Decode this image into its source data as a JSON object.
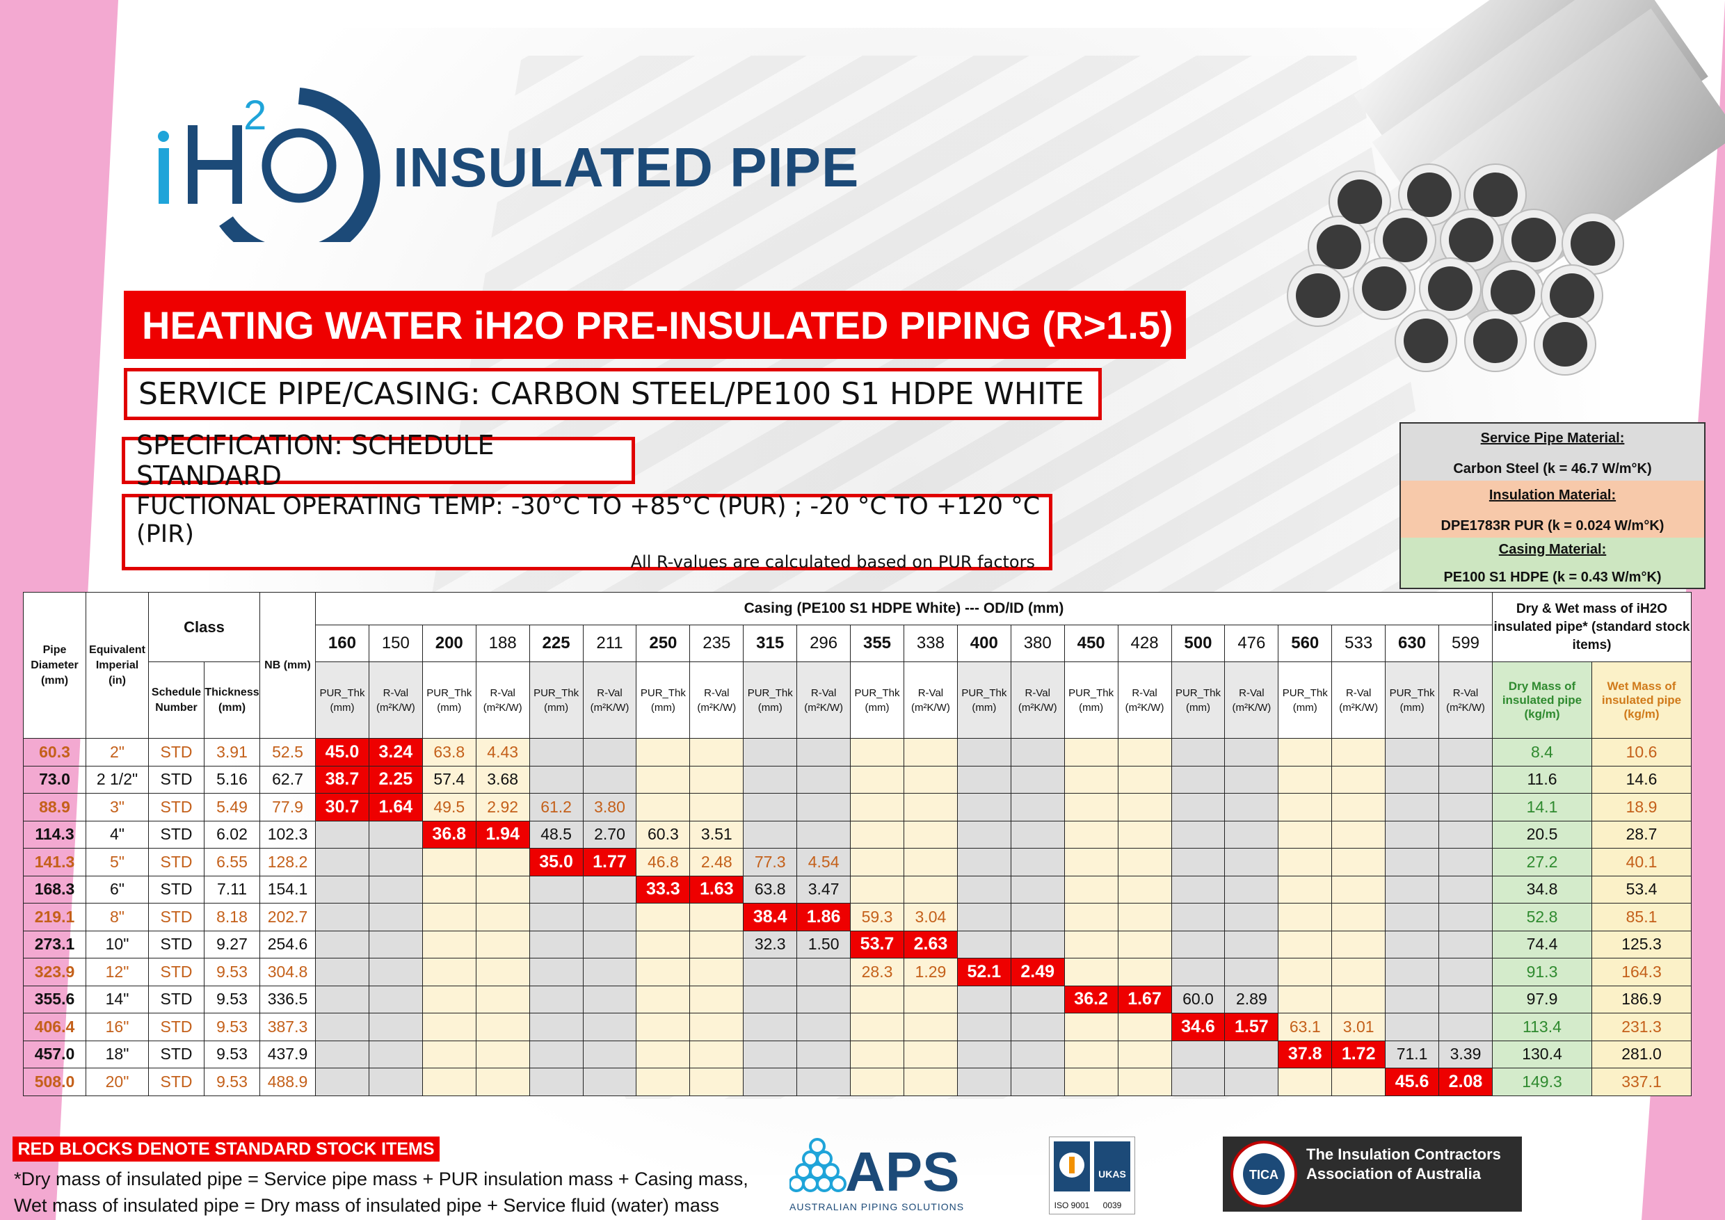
{
  "brand": {
    "logo_text": "iH2O",
    "title": "INSULATED PIPE"
  },
  "headline": "HEATING WATER iH2O PRE-INSULATED PIPING (R>1.5)",
  "service_pipe": "SERVICE PIPE/CASING: CARBON STEEL/PE100 S1 HDPE WHITE",
  "specification": "SPECIFICATION: SCHEDULE STANDARD",
  "temperature": "FUCTIONAL OPERATING TEMP: -30°C TO +85°C (PUR) ; -20 °C TO +120 °C (PIR)",
  "r_value_note": "All R-values are calculated based on PUR factors",
  "materials": {
    "service_heading": "Service Pipe Material:",
    "service_value": "Carbon Steel    (k = 46.7 W/m°K)",
    "insulation_heading": "Insulation Material:",
    "insulation_value": "DPE1783R PUR    (k = 0.024 W/m°K)",
    "casing_heading": "Casing Material:",
    "casing_value": "PE100 S1 HDPE    (k = 0.43 W/m°K)"
  },
  "table": {
    "headers": {
      "pipe_diameter": "Pipe Diameter (mm)",
      "equivalent_imperial": "Equivalent Imperial (in)",
      "class": "Class",
      "schedule_number": "Schedule Number",
      "thickness": "Thickness (mm)",
      "nb": "NB (mm)",
      "casing": "Casing (PE100 S1 HDPE White) --- OD/ID (mm)",
      "mass": "Dry & Wet mass of iH2O insulated pipe* (standard stock items)",
      "dry_mass": "Dry Mass of insulated pipe (kg/m)",
      "wet_mass": "Wet Mass of insulated pipe (kg/m)",
      "pur_thk": "PUR_Thk (mm)",
      "r_val": "R-Val (m²K/W)"
    },
    "casing_sizes": [
      {
        "od": "160",
        "id": "150"
      },
      {
        "od": "200",
        "id": "188"
      },
      {
        "od": "225",
        "id": "211"
      },
      {
        "od": "250",
        "id": "235"
      },
      {
        "od": "315",
        "id": "296"
      },
      {
        "od": "355",
        "id": "338"
      },
      {
        "od": "400",
        "id": "380"
      },
      {
        "od": "450",
        "id": "428"
      },
      {
        "od": "500",
        "id": "476"
      },
      {
        "od": "560",
        "id": "533"
      },
      {
        "od": "630",
        "id": "599"
      }
    ],
    "rows": [
      {
        "dia": "60.3",
        "imp": "2\"",
        "sch": "STD",
        "thk": "3.91",
        "nb": "52.5",
        "start": 0,
        "cells": [
          "45.0",
          "3.24",
          "63.8",
          "4.43"
        ],
        "dry": "8.4",
        "wet": "10.6"
      },
      {
        "dia": "73.0",
        "imp": "2 1/2\"",
        "sch": "STD",
        "thk": "5.16",
        "nb": "62.7",
        "start": 0,
        "cells": [
          "38.7",
          "2.25",
          "57.4",
          "3.68"
        ],
        "dry": "11.6",
        "wet": "14.6"
      },
      {
        "dia": "88.9",
        "imp": "3\"",
        "sch": "STD",
        "thk": "5.49",
        "nb": "77.9",
        "start": 0,
        "cells": [
          "30.7",
          "1.64",
          "49.5",
          "2.92",
          "61.2",
          "3.80"
        ],
        "dry": "14.1",
        "wet": "18.9"
      },
      {
        "dia": "114.3",
        "imp": "4\"",
        "sch": "STD",
        "thk": "6.02",
        "nb": "102.3",
        "start": 1,
        "cells": [
          "36.8",
          "1.94",
          "48.5",
          "2.70",
          "60.3",
          "3.51"
        ],
        "dry": "20.5",
        "wet": "28.7"
      },
      {
        "dia": "141.3",
        "imp": "5\"",
        "sch": "STD",
        "thk": "6.55",
        "nb": "128.2",
        "start": 2,
        "cells": [
          "35.0",
          "1.77",
          "46.8",
          "2.48",
          "77.3",
          "4.54"
        ],
        "dry": "27.2",
        "wet": "40.1"
      },
      {
        "dia": "168.3",
        "imp": "6\"",
        "sch": "STD",
        "thk": "7.11",
        "nb": "154.1",
        "start": 3,
        "cells": [
          "33.3",
          "1.63",
          "63.8",
          "3.47"
        ],
        "dry": "34.8",
        "wet": "53.4"
      },
      {
        "dia": "219.1",
        "imp": "8\"",
        "sch": "STD",
        "thk": "8.18",
        "nb": "202.7",
        "start": 4,
        "cells": [
          "38.4",
          "1.86",
          "59.3",
          "3.04"
        ],
        "dry": "52.8",
        "wet": "85.1"
      },
      {
        "dia": "273.1",
        "imp": "10\"",
        "sch": "STD",
        "thk": "9.27",
        "nb": "254.6",
        "start": 5,
        "pre": [
          "32.3",
          "1.50"
        ],
        "cells": [
          "53.7",
          "2.63"
        ],
        "dry": "74.4",
        "wet": "125.3"
      },
      {
        "dia": "323.9",
        "imp": "12\"",
        "sch": "STD",
        "thk": "9.53",
        "nb": "304.8",
        "start": 6,
        "pre": [
          "28.3",
          "1.29"
        ],
        "cells": [
          "52.1",
          "2.49"
        ],
        "dry": "91.3",
        "wet": "164.3"
      },
      {
        "dia": "355.6",
        "imp": "14\"",
        "sch": "STD",
        "thk": "9.53",
        "nb": "336.5",
        "start": 7,
        "cells": [
          "36.2",
          "1.67",
          "60.0",
          "2.89"
        ],
        "dry": "97.9",
        "wet": "186.9"
      },
      {
        "dia": "406.4",
        "imp": "16\"",
        "sch": "STD",
        "thk": "9.53",
        "nb": "387.3",
        "start": 8,
        "cells": [
          "34.6",
          "1.57",
          "63.1",
          "3.01"
        ],
        "dry": "113.4",
        "wet": "231.3"
      },
      {
        "dia": "457.0",
        "imp": "18\"",
        "sch": "STD",
        "thk": "9.53",
        "nb": "437.9",
        "start": 9,
        "cells": [
          "37.8",
          "1.72",
          "71.1",
          "3.39"
        ],
        "dry": "130.4",
        "wet": "281.0"
      },
      {
        "dia": "508.0",
        "imp": "20\"",
        "sch": "STD",
        "thk": "9.53",
        "nb": "488.9",
        "start": 10,
        "cells": [
          "45.6",
          "2.08"
        ],
        "dry": "149.3",
        "wet": "337.1"
      }
    ]
  },
  "footer": {
    "stock_label": "RED BLOCKS DENOTE STANDARD STOCK ITEMS",
    "note_dry": "*Dry mass of insulated pipe = Service pipe mass + PUR insulation mass + Casing mass,",
    "note_wet": "Wet mass of insulated pipe = Dry mass of insulated pipe + Service fluid (water) mass",
    "aps_name": "APS",
    "aps_sub": "AUSTRALIAN PIPING SOLUTIONS",
    "iso_text": "ISO 9001",
    "iso_code": "0039",
    "tica_badge": "TICA",
    "tica_text": "The Insulation Contractors Association of Australia"
  },
  "colors": {
    "red": "#ee0000",
    "navy": "#1c4a78",
    "pink": "#f3a9d1",
    "grey_band": "#dedede",
    "cream_band": "#fdf3d6",
    "green": "#d4ebcb"
  }
}
